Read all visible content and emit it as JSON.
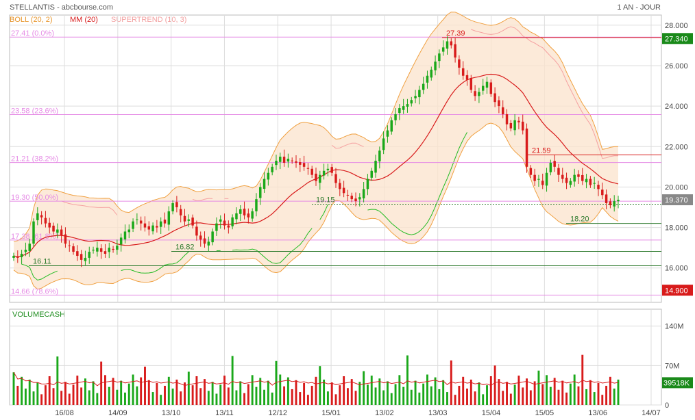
{
  "header": {
    "title": "STELLANTIS - abcbourse.com",
    "period": "1 AN - JOUR"
  },
  "legend": {
    "boll": "BOLL (20, 2)",
    "mm": "MM (20)",
    "supertrend": "SUPERTREND (10, 3)",
    "volume": "VOLUMECASH"
  },
  "colors": {
    "up": "#1aa81a",
    "down": "#d81b1b",
    "boll": "#f0a040",
    "boll_fill": "#fbe3cc",
    "mm": "#d81b1b",
    "supertrend_green": "#22bb22",
    "supertrend_red": "#f5a0a0",
    "fib": "#e58be5",
    "grid": "#dddddd",
    "price_tag": "#1a8a1a",
    "low_tag": "#d81b1b"
  },
  "chart_data": [
    {
      "type": "candlestick",
      "title": "",
      "ylim": [
        14.3,
        28.5
      ],
      "y_ticks": [
        "28.000",
        "26.000",
        "24.000",
        "22.000",
        "20.000",
        "18.000",
        "16.000"
      ],
      "y_tick_values": [
        28,
        26,
        24,
        22,
        20,
        18,
        16
      ],
      "x_ticks": [
        "16/08",
        "14/09",
        "13/10",
        "13/11",
        "12/12",
        "15/01",
        "13/02",
        "13/03",
        "15/04",
        "15/05",
        "13/06",
        "14/07"
      ],
      "last_price": "19.370",
      "last_price_value": 19.37,
      "high_tag": "27.340",
      "high_tag_value": 27.34,
      "low_tag": "14.900",
      "low_tag_value": 14.9,
      "fibonacci": [
        {
          "label": "27.41 (0.0%)",
          "value": 27.41
        },
        {
          "label": "23.58 (23.6%)",
          "value": 23.58
        },
        {
          "label": "21.21 (38.2%)",
          "value": 21.21
        },
        {
          "label": "19.30 (50.0%)",
          "value": 19.3
        },
        {
          "label": "17.38 (61.8%)",
          "value": 17.38
        },
        {
          "label": "14.66 (78.6%)",
          "value": 14.66
        }
      ],
      "annotations": [
        {
          "label": "27.39",
          "value": 27.39,
          "kind": "resistance"
        },
        {
          "label": "21.59",
          "value": 21.59,
          "kind": "resistance"
        },
        {
          "label": "19.15",
          "value": 19.15,
          "kind": "dotted"
        },
        {
          "label": "18.20",
          "value": 18.2,
          "kind": "support"
        },
        {
          "label": "16.82",
          "value": 16.82,
          "kind": "support"
        },
        {
          "label": "16.11",
          "value": 16.11,
          "kind": "support"
        }
      ],
      "closes": [
        16.6,
        16.5,
        16.7,
        16.9,
        17.2,
        18.3,
        18.7,
        18.5,
        18.2,
        18.0,
        17.8,
        17.9,
        17.6,
        17.2,
        17.1,
        16.8,
        16.6,
        16.4,
        16.5,
        16.8,
        16.9,
        17.0,
        16.8,
        16.7,
        17.0,
        16.9,
        17.1,
        17.5,
        17.8,
        17.9,
        18.3,
        18.4,
        18.2,
        18.0,
        17.9,
        18.1,
        18.0,
        18.3,
        18.2,
        18.8,
        19.2,
        19.0,
        18.6,
        18.3,
        18.4,
        18.1,
        17.6,
        17.4,
        17.2,
        17.3,
        17.8,
        18.2,
        18.4,
        18.1,
        18.0,
        18.5,
        18.7,
        18.9,
        18.6,
        18.5,
        18.8,
        19.4,
        20.0,
        20.4,
        20.7,
        21.0,
        21.3,
        21.5,
        21.2,
        21.4,
        21.3,
        21.2,
        21.1,
        21.0,
        20.9,
        20.6,
        20.3,
        20.6,
        20.8,
        20.9,
        20.7,
        20.2,
        19.9,
        19.7,
        19.6,
        19.4,
        19.3,
        19.5,
        19.9,
        20.4,
        20.8,
        21.3,
        21.8,
        22.4,
        22.8,
        23.3,
        23.6,
        23.9,
        24.0,
        24.1,
        24.3,
        24.5,
        24.8,
        25.1,
        25.5,
        25.8,
        26.2,
        26.6,
        26.9,
        27.2,
        27.0,
        26.4,
        25.9,
        25.5,
        25.3,
        24.8,
        24.5,
        24.7,
        25.0,
        25.2,
        24.6,
        24.2,
        24.0,
        23.6,
        23.1,
        22.9,
        23.3,
        23.2,
        22.8,
        21.0,
        20.6,
        20.3,
        20.4,
        20.1,
        20.7,
        21.2,
        21.0,
        20.6,
        20.4,
        20.2,
        20.3,
        20.6,
        20.5,
        20.3,
        20.4,
        20.1,
        20.2,
        19.9,
        19.6,
        19.2,
        19.1,
        19.3,
        19.37
      ],
      "volume": {
        "label": "VOLUMECASH",
        "ylim": [
          0,
          170
        ],
        "y_ticks": [
          "140M",
          "70M",
          "0"
        ],
        "y_tick_values": [
          140,
          70,
          0
        ],
        "last": "39518K",
        "last_value": 39.518
      }
    }
  ]
}
